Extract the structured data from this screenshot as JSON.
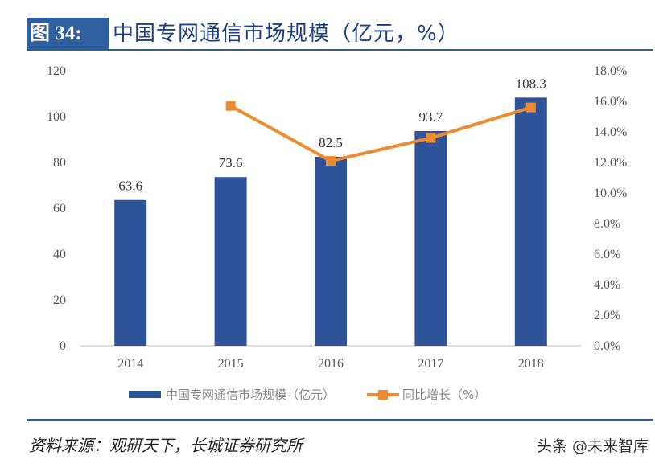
{
  "header": {
    "figure_label": "图 34:",
    "title": "中国专网通信市场规模（亿元，%）"
  },
  "chart_data": {
    "type": "bar+line",
    "categories": [
      "2014",
      "2015",
      "2016",
      "2017",
      "2018"
    ],
    "series": [
      {
        "name": "中国专网通信市场规模（亿元）",
        "type": "bar",
        "axis": "left",
        "values": [
          63.6,
          73.6,
          82.5,
          93.7,
          108.3
        ],
        "data_labels": [
          "63.6",
          "73.6",
          "82.5",
          "93.7",
          "108.3"
        ],
        "color": "#2e5399"
      },
      {
        "name": "同比增长（%）",
        "type": "line",
        "axis": "right",
        "values": [
          null,
          15.7,
          12.1,
          13.6,
          15.6
        ],
        "color": "#f08a2e"
      }
    ],
    "left_axis": {
      "ylim": [
        0,
        120
      ],
      "ticks": [
        "0",
        "20",
        "40",
        "60",
        "80",
        "100",
        "120"
      ]
    },
    "right_axis": {
      "ylim": [
        0,
        18
      ],
      "ticks": [
        "0.0%",
        "2.0%",
        "4.0%",
        "6.0%",
        "8.0%",
        "10.0%",
        "12.0%",
        "14.0%",
        "16.0%",
        "18.0%"
      ]
    },
    "grid": false,
    "legend": "bottom"
  },
  "footer": {
    "source": "资料来源：观研天下，长城证券研究所",
    "watermark": "头条 @未来智库"
  }
}
